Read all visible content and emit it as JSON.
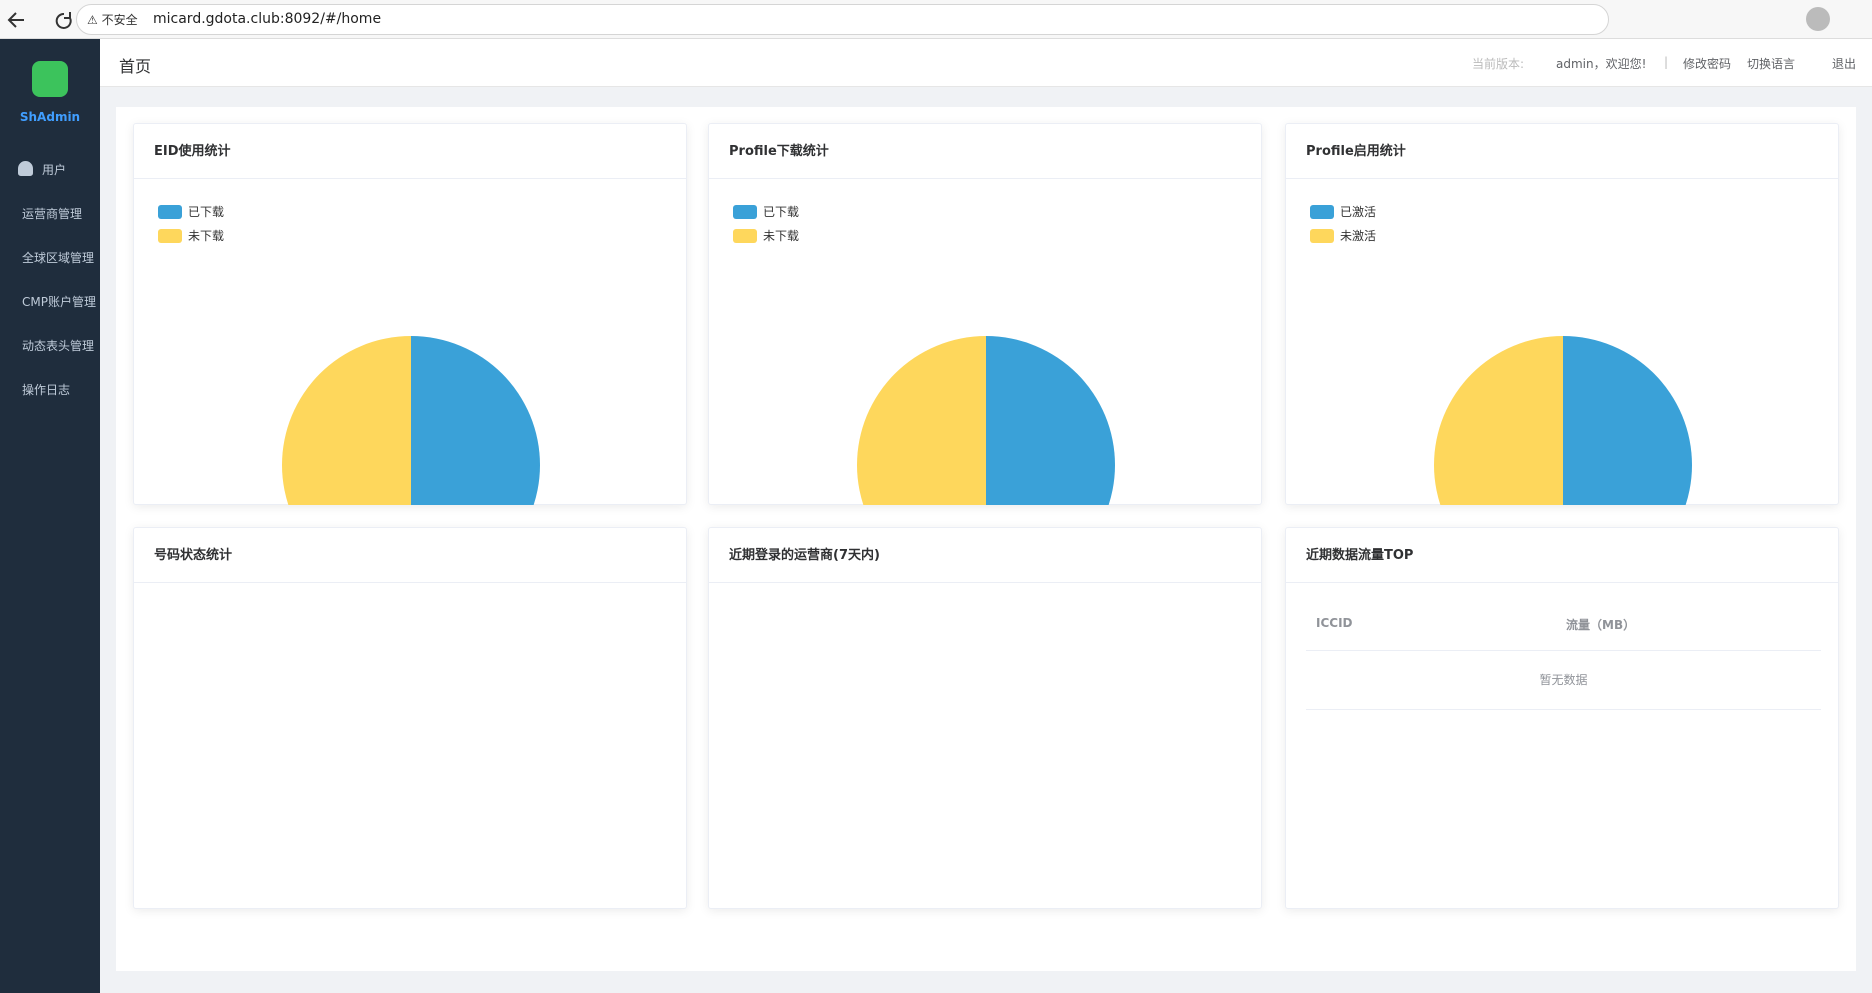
{
  "browser": {
    "security": "不安全",
    "url": "micard.gdota.club:8092/#/home"
  },
  "sidebar": {
    "brand": "ShAdmin",
    "menu": [
      "用户",
      "运营商管理",
      "全球区域管理",
      "CMP账户管理",
      "动态表头管理",
      "操作日志"
    ]
  },
  "header": {
    "title": "首页",
    "version_label": "当前版本:",
    "welcome": "admin，欢迎您!",
    "divider": "|",
    "actions": [
      "修改密码",
      "切换语言",
      "退出"
    ]
  },
  "panels": [
    {
      "title": "EID使用统计",
      "chart": {
        "type": "pie",
        "categories": [
          "已下载",
          "未下载"
        ],
        "values": [
          50,
          50
        ],
        "colors": [
          "#3aa1d8",
          "#fed75c"
        ]
      }
    },
    {
      "title": "Profile下载统计",
      "chart": {
        "type": "pie",
        "categories": [
          "已下载",
          "未下载"
        ],
        "values": [
          50,
          50
        ],
        "colors": [
          "#3aa1d8",
          "#fed75c"
        ]
      }
    },
    {
      "title": "Profile启用统计",
      "chart": {
        "type": "pie",
        "categories": [
          "已激活",
          "未激活"
        ],
        "values": [
          50,
          50
        ],
        "colors": [
          "#3aa1d8",
          "#fed75c"
        ]
      }
    },
    {
      "title": "号码状态统计"
    },
    {
      "title": "近期登录的运营商(7天内)"
    },
    {
      "title": "近期数据流量TOP",
      "table": {
        "columns": [
          "ICCID",
          "流量（MB）"
        ],
        "empty": "暂无数据"
      }
    }
  ]
}
